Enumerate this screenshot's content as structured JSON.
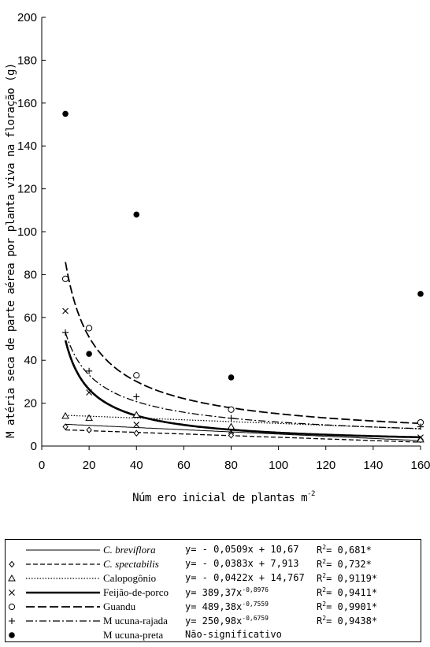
{
  "chart_data": {
    "type": "scatter",
    "xlabel": "Núm ero inicial de plantas m",
    "xlabel_exp": "-2",
    "ylabel": "M atéria seca de parte aérea por planta viva na floração (g)",
    "xlim": [
      0,
      160
    ],
    "ylim": [
      0,
      200
    ],
    "x_ticks": [
      "0",
      "20",
      "40",
      "60",
      "80",
      "100",
      "120",
      "140",
      "160"
    ],
    "y_ticks": [
      "0",
      "20",
      "40",
      "60",
      "80",
      "100",
      "120",
      "140",
      "160",
      "180",
      "200"
    ],
    "x": [
      10,
      20,
      40,
      80,
      160
    ],
    "series": [
      {
        "name": "C. breviflora",
        "marker": "none",
        "values": [
          null,
          null,
          null,
          null,
          null
        ],
        "fit": {
          "kind": "linear",
          "a": -0.0509,
          "b": 10.67
        },
        "line": "thin",
        "equation": "y= - 0,0509x + 10,67",
        "r2": "R = 0,681*"
      },
      {
        "name": "C. spectabilis",
        "marker": "diamond",
        "values": [
          9,
          7.5,
          6,
          5,
          3
        ],
        "fit": {
          "kind": "linear",
          "a": -0.0383,
          "b": 7.913
        },
        "line": "dash",
        "equation": "y= - 0,0383x + 7,913",
        "r2": "R = 0,732*"
      },
      {
        "name": "Calopogônio",
        "marker": "triangle",
        "values": [
          14,
          13,
          14.5,
          9,
          3
        ],
        "fit": {
          "kind": "linear",
          "a": -0.0422,
          "b": 14.767
        },
        "line": "dot",
        "equation": "y= - 0,0422x + 14,767",
        "r2": "R = 0,9119*"
      },
      {
        "name": "Feijão-de-porco",
        "marker": "x",
        "values": [
          63,
          25,
          10,
          7,
          4
        ],
        "fit": {
          "kind": "power",
          "a": 389.37,
          "b": -0.8976
        },
        "line": "thick",
        "equation": "y= 389,37x",
        "eq_exp": "-0,8976",
        "r2": "R = 0,9411*"
      },
      {
        "name": "Guandu",
        "marker": "circle",
        "values": [
          78,
          55,
          33,
          17,
          11
        ],
        "fit": {
          "kind": "power",
          "a": 489.38,
          "b": -0.7559
        },
        "line": "longdash",
        "equation": "y= 489,38x",
        "eq_exp": "-0,7559",
        "r2": "R = 0,9901*"
      },
      {
        "name": "Mucuna-rajada",
        "marker": "plus",
        "values": [
          53,
          35,
          23,
          13,
          9
        ],
        "fit": {
          "kind": "power",
          "a": 250.98,
          "b": -0.6759
        },
        "line": "dashdot",
        "equation": "y= 250,98x",
        "eq_exp": "-0,6759",
        "r2": "R = 0,9438*"
      },
      {
        "name": "Mucuna-preta",
        "marker": "dot",
        "values": [
          155,
          43,
          108,
          32,
          71
        ],
        "fit": null,
        "line": "none",
        "equation": "Não-significativo",
        "r2": ""
      }
    ],
    "legend_position": "bottom",
    "grid": false
  },
  "legend": {
    "names": [
      "C. breviflora",
      "C. spectabilis",
      "Calopogônio",
      "Feijão-de-porco",
      "Guandu",
      "M ucuna-rajada",
      "M ucuna-preta"
    ],
    "equations": [
      "y= - 0,0509x +  10,67",
      "y= - 0,0383x +  7,913",
      "y= - 0,0422x +  14,767",
      "y= 389,37x",
      "y= 489,38x",
      "y= 250,98x",
      "Não-significativo"
    ],
    "eq_exps": [
      "",
      "",
      "",
      "-0,8976",
      "-0,7559",
      "-0,6759",
      ""
    ],
    "r2": [
      "0,681*",
      "0,732*",
      "0,9119*",
      "0,9411*",
      "0,9901*",
      "0,9438*",
      ""
    ]
  }
}
